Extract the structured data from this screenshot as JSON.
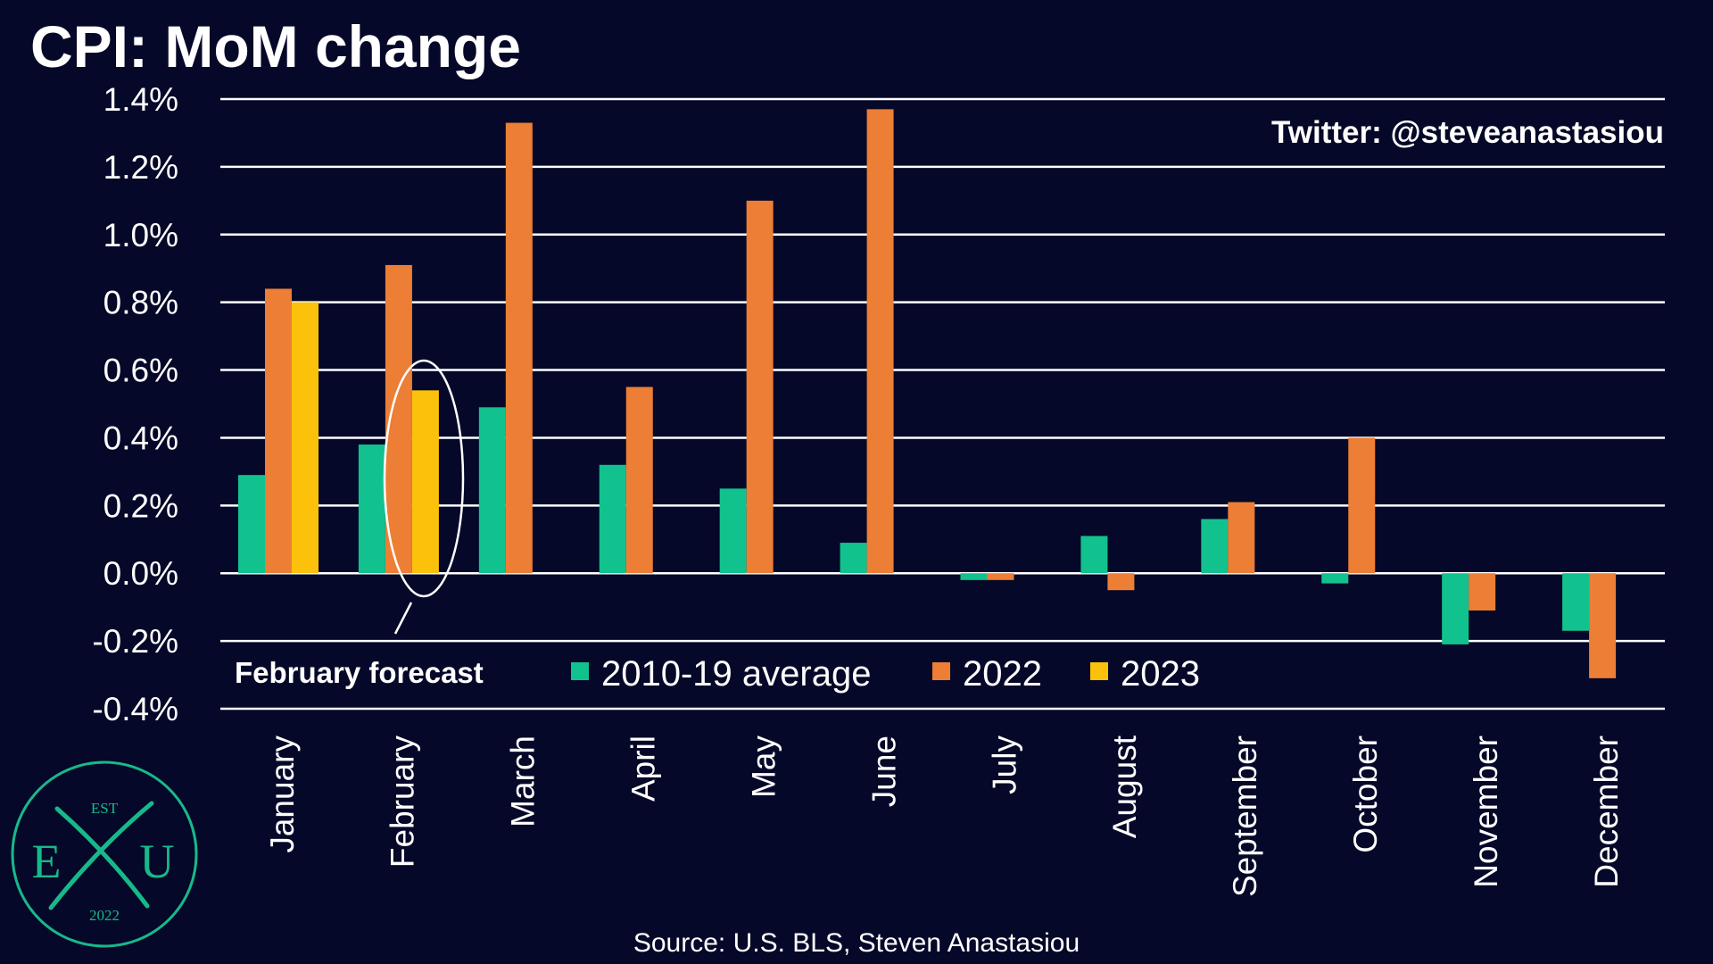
{
  "title": "CPI: MoM change",
  "twitter": "Twitter: @steveanastasiou",
  "source": "Source: U.S. BLS, Steven Anastasiou",
  "annotation": "February forecast",
  "logo": {
    "top": "EST",
    "left": "E",
    "right": "U",
    "year": "2022",
    "color": "#17b98a"
  },
  "chart_data": {
    "type": "bar",
    "categories": [
      "January",
      "February",
      "March",
      "April",
      "May",
      "June",
      "July",
      "August",
      "September",
      "October",
      "November",
      "December"
    ],
    "series": [
      {
        "name": "2010-19 average",
        "color": "#12c28e",
        "values": [
          0.29,
          0.38,
          0.49,
          0.32,
          0.25,
          0.09,
          -0.02,
          0.11,
          0.16,
          -0.03,
          -0.21,
          -0.17
        ]
      },
      {
        "name": "2022",
        "color": "#ec7e35",
        "values": [
          0.84,
          0.91,
          1.33,
          0.55,
          1.1,
          1.37,
          -0.02,
          -0.05,
          0.21,
          0.4,
          -0.11,
          -0.31
        ]
      },
      {
        "name": "2023",
        "color": "#fcc20b",
        "values": [
          0.8,
          0.54,
          null,
          null,
          null,
          null,
          null,
          null,
          null,
          null,
          null,
          null
        ]
      }
    ],
    "yticks": [
      "1.4%",
      "1.2%",
      "1.0%",
      "0.8%",
      "0.6%",
      "0.4%",
      "0.2%",
      "0.0%",
      "-0.2%",
      "-0.4%"
    ],
    "ylim": [
      -0.4,
      1.4
    ],
    "grid": true,
    "legend_placement": "bottom-center"
  }
}
